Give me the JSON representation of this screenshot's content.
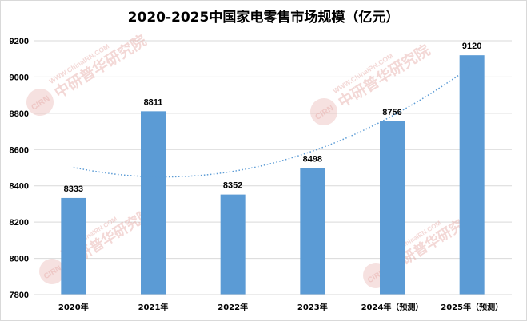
{
  "chart_data": {
    "type": "bar",
    "title": "2020-2025中国家电零售市场规模（亿元）",
    "categories": [
      "2020年",
      "2021年",
      "2022年",
      "2023年",
      "2024年（预测）",
      "2025年（预测）"
    ],
    "values": [
      8333,
      8811,
      8352,
      8498,
      8756,
      9120
    ],
    "ylim": [
      7800,
      9200
    ],
    "yticks": [
      7800,
      8000,
      8200,
      8400,
      8600,
      8800,
      9000,
      9200
    ],
    "grid": true,
    "bar_color": "#5b9bd5",
    "trendline": {
      "type": "polynomial",
      "style": "dotted",
      "color": "#5b9bd5"
    }
  },
  "watermark": {
    "logo_text": "CIRN",
    "cn_text": "中研普华研究院",
    "en_text": "WWW.ChinaIRN.COM"
  }
}
